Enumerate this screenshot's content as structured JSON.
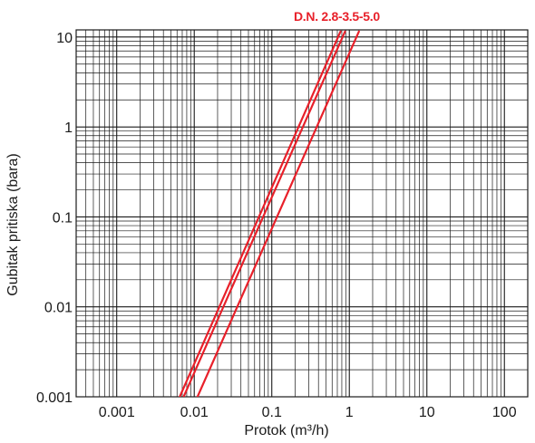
{
  "chart_data": {
    "type": "line",
    "title": "",
    "xlabel": "Protok (m³/h)",
    "ylabel": "Gubitak pritiska (bara)",
    "x_scale": "log",
    "y_scale": "log",
    "xlim": [
      0.0003,
      200
    ],
    "ylim": [
      0.001,
      12
    ],
    "x_ticks": [
      0.001,
      0.01,
      0.1,
      1,
      10,
      100
    ],
    "x_tick_labels": [
      "0.001",
      "0.01",
      "0.1",
      "1",
      "10",
      "100"
    ],
    "y_ticks": [
      0.001,
      0.01,
      0.1,
      1,
      10
    ],
    "y_tick_labels": [
      "0.001",
      "0.01",
      "0.1",
      "1",
      "10"
    ],
    "grid": true,
    "legend_text": "D.N. 2.8-3.5-5.0",
    "legend_position": "top-right",
    "line_color": "#e8202a",
    "series": [
      {
        "x": [
          0.0065,
          0.77
        ],
        "y": [
          0.001,
          11.5
        ]
      },
      {
        "x": [
          0.0073,
          0.88
        ],
        "y": [
          0.001,
          11.5
        ]
      },
      {
        "x": [
          0.011,
          1.33
        ],
        "y": [
          0.001,
          11.5
        ]
      }
    ]
  }
}
